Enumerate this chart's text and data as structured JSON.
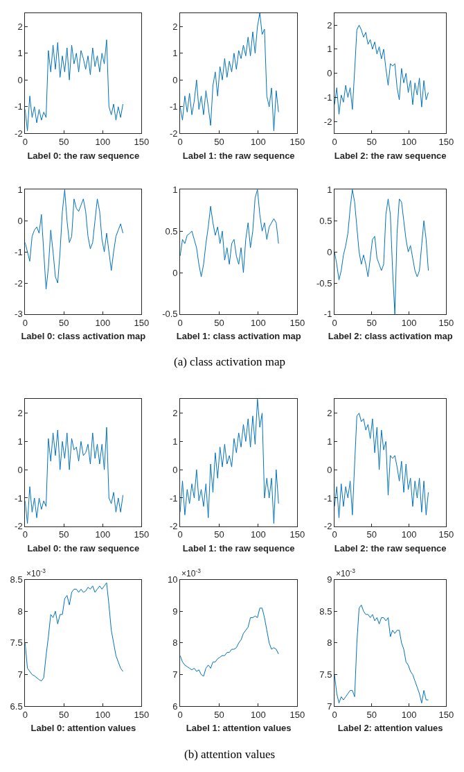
{
  "chart_data": [
    {
      "type": "line",
      "xlabel": "Label 0: the raw sequence",
      "x": [
        0,
        3,
        6,
        9,
        12,
        15,
        18,
        21,
        24,
        27,
        30,
        33,
        36,
        39,
        42,
        45,
        48,
        51,
        54,
        57,
        60,
        63,
        66,
        69,
        72,
        75,
        78,
        81,
        84,
        87,
        90,
        93,
        96,
        99,
        102,
        105,
        108,
        111,
        114,
        117,
        120,
        123,
        126
      ],
      "xlim": [
        0,
        150
      ],
      "xticks": [
        0,
        50,
        100,
        150
      ],
      "ylim": [
        -2,
        2.5
      ],
      "yticks": [
        -2,
        -1,
        0,
        1,
        2
      ],
      "grid": false,
      "series": [
        {
          "color": "#0072bd",
          "values": [
            -1.1,
            -1.9,
            -0.6,
            -1.4,
            -1.0,
            -1.6,
            -1.1,
            -1.5,
            -1.2,
            -1.4,
            1.1,
            0.3,
            1.3,
            0.4,
            1.4,
            0.1,
            0.9,
            0.3,
            1.2,
            0.0,
            1.3,
            0.6,
            1.0,
            0.3,
            1.1,
            0.8,
            0.4,
            0.9,
            0.2,
            1.2,
            0.5,
            0.9,
            0.3,
            1.0,
            0.6,
            1.5,
            -1.0,
            -1.3,
            -0.9,
            -1.5,
            -1.0,
            -1.4,
            -0.9
          ]
        }
      ]
    },
    {
      "type": "line",
      "xlabel": "Label 1: the raw sequence",
      "x": [
        0,
        3,
        6,
        9,
        12,
        15,
        18,
        21,
        24,
        27,
        30,
        33,
        36,
        39,
        42,
        45,
        48,
        51,
        54,
        57,
        60,
        63,
        66,
        69,
        72,
        75,
        78,
        81,
        84,
        87,
        90,
        93,
        96,
        99,
        102,
        105,
        108,
        111,
        114,
        117,
        120,
        123,
        126
      ],
      "xlim": [
        0,
        150
      ],
      "xticks": [
        0,
        50,
        100,
        150
      ],
      "ylim": [
        -2,
        2.5
      ],
      "yticks": [
        -2,
        -1,
        0,
        1,
        2
      ],
      "grid": false,
      "series": [
        {
          "color": "#0072bd",
          "values": [
            -1.0,
            -1.5,
            -0.6,
            -1.2,
            -0.5,
            -1.3,
            -0.8,
            0.0,
            -1.1,
            -0.6,
            -1.3,
            -0.4,
            -1.0,
            -1.7,
            -0.2,
            0.3,
            -0.6,
            0.5,
            0.0,
            0.8,
            0.1,
            0.7,
            0.3,
            1.0,
            0.4,
            1.1,
            0.8,
            1.3,
            0.9,
            1.6,
            0.9,
            1.8,
            1.0,
            2.0,
            2.5,
            1.7,
            1.9,
            -0.6,
            -1.0,
            -0.3,
            -1.9,
            -0.4,
            -1.2
          ]
        }
      ]
    },
    {
      "type": "line",
      "xlabel": "Label 2: the raw sequence",
      "x": [
        0,
        3,
        6,
        9,
        12,
        15,
        18,
        21,
        24,
        27,
        30,
        33,
        36,
        39,
        42,
        45,
        48,
        51,
        54,
        57,
        60,
        63,
        66,
        69,
        72,
        75,
        78,
        81,
        84,
        87,
        90,
        93,
        96,
        99,
        102,
        105,
        108,
        111,
        114,
        117,
        120,
        123,
        126
      ],
      "xlim": [
        0,
        150
      ],
      "xticks": [
        0,
        50,
        100,
        150
      ],
      "ylim": [
        -2.5,
        2.5
      ],
      "yticks": [
        -2,
        -1,
        0,
        1,
        2
      ],
      "grid": false,
      "series": [
        {
          "color": "#0072bd",
          "values": [
            -1.3,
            -0.6,
            -1.7,
            -0.9,
            -1.2,
            -0.5,
            -1.0,
            -0.6,
            -1.5,
            0.1,
            1.8,
            2.0,
            1.8,
            1.5,
            1.7,
            1.2,
            1.4,
            1.0,
            1.3,
            0.8,
            1.1,
            0.6,
            1.0,
            0.2,
            -0.5,
            0.4,
            0.3,
            0.4,
            -0.6,
            -1.1,
            0.2,
            -0.4,
            0.0,
            -0.8,
            -0.3,
            -1.3,
            -0.4,
            -0.9,
            -0.2,
            -1.4,
            -0.3,
            -1.1,
            -0.8
          ]
        }
      ]
    },
    {
      "type": "line",
      "xlabel": "Label 0: class activation map",
      "x": [
        0,
        3,
        6,
        9,
        12,
        15,
        18,
        21,
        24,
        27,
        30,
        33,
        36,
        39,
        42,
        45,
        48,
        51,
        54,
        57,
        60,
        63,
        66,
        69,
        72,
        75,
        78,
        81,
        84,
        87,
        90,
        93,
        96,
        99,
        102,
        105,
        108,
        111,
        114,
        117,
        120,
        123,
        126
      ],
      "xlim": [
        0,
        150
      ],
      "xticks": [
        0,
        50,
        100,
        150
      ],
      "ylim": [
        -3,
        1
      ],
      "yticks": [
        -3,
        -2,
        -1,
        0,
        1
      ],
      "grid": false,
      "series": [
        {
          "color": "#0072bd",
          "values": [
            -0.7,
            -1.0,
            -1.3,
            -0.5,
            -0.3,
            -0.2,
            -0.4,
            0.2,
            -1.0,
            -2.2,
            -1.5,
            -0.3,
            -1.0,
            -1.8,
            -2.0,
            -1.0,
            0.3,
            1.0,
            0.0,
            -0.7,
            -0.5,
            0.7,
            0.4,
            0.3,
            0.5,
            0.7,
            0.3,
            -0.5,
            -0.9,
            -0.7,
            0.0,
            0.7,
            0.3,
            -0.6,
            -1.0,
            -0.4,
            -1.0,
            -1.6,
            -1.0,
            -0.5,
            -0.3,
            -0.1,
            -0.4
          ]
        }
      ]
    },
    {
      "type": "line",
      "xlabel": "Label 1: class activation map",
      "x": [
        0,
        3,
        6,
        9,
        12,
        15,
        18,
        21,
        24,
        27,
        30,
        33,
        36,
        39,
        42,
        45,
        48,
        51,
        54,
        57,
        60,
        63,
        66,
        69,
        72,
        75,
        78,
        81,
        84,
        87,
        90,
        93,
        96,
        99,
        102,
        105,
        108,
        111,
        114,
        117,
        120,
        123,
        126
      ],
      "xlim": [
        0,
        150
      ],
      "xticks": [
        0,
        50,
        100,
        150
      ],
      "ylim": [
        -0.5,
        1
      ],
      "yticks": [
        -0.5,
        0,
        0.5,
        1
      ],
      "grid": false,
      "series": [
        {
          "color": "#0072bd",
          "values": [
            0.2,
            0.4,
            0.35,
            0.45,
            0.47,
            0.5,
            0.4,
            0.3,
            0.1,
            -0.05,
            0.1,
            0.35,
            0.55,
            0.8,
            0.6,
            0.45,
            0.55,
            0.35,
            0.5,
            0.15,
            0.3,
            0.1,
            0.35,
            0.4,
            0.2,
            0.1,
            0.3,
            0.0,
            0.4,
            0.6,
            0.3,
            0.5,
            0.9,
            1.0,
            0.7,
            0.5,
            0.6,
            0.4,
            0.55,
            0.6,
            0.65,
            0.6,
            0.35
          ]
        }
      ]
    },
    {
      "type": "line",
      "xlabel": "Label 2: class activation map",
      "x": [
        0,
        3,
        6,
        9,
        12,
        15,
        18,
        21,
        24,
        27,
        30,
        33,
        36,
        39,
        42,
        45,
        48,
        51,
        54,
        57,
        60,
        63,
        66,
        69,
        72,
        75,
        78,
        81,
        84,
        87,
        90,
        93,
        96,
        99,
        102,
        105,
        108,
        111,
        114,
        117,
        120,
        123,
        126
      ],
      "xlim": [
        0,
        150
      ],
      "xticks": [
        0,
        50,
        100,
        150
      ],
      "ylim": [
        -1,
        1
      ],
      "yticks": [
        -1,
        -0.5,
        0,
        0.5,
        1
      ],
      "grid": false,
      "series": [
        {
          "color": "#0072bd",
          "values": [
            0.0,
            -0.2,
            -0.45,
            -0.3,
            -0.05,
            0.1,
            0.3,
            0.7,
            1.0,
            0.8,
            0.4,
            0.0,
            -0.2,
            -0.05,
            -0.2,
            -0.4,
            -0.1,
            0.2,
            0.25,
            -0.1,
            -0.2,
            -0.3,
            -0.2,
            0.6,
            0.85,
            0.6,
            -0.3,
            -1.0,
            0.3,
            0.85,
            0.8,
            0.5,
            0.2,
            0.0,
            0.1,
            -0.1,
            -0.3,
            -0.4,
            -0.3,
            0.1,
            0.5,
            0.2,
            -0.3
          ]
        }
      ]
    },
    {
      "type": "line",
      "xlabel": "Label 0: the raw sequence",
      "x": [
        0,
        3,
        6,
        9,
        12,
        15,
        18,
        21,
        24,
        27,
        30,
        33,
        36,
        39,
        42,
        45,
        48,
        51,
        54,
        57,
        60,
        63,
        66,
        69,
        72,
        75,
        78,
        81,
        84,
        87,
        90,
        93,
        96,
        99,
        102,
        105,
        108,
        111,
        114,
        117,
        120,
        123,
        126
      ],
      "xlim": [
        0,
        150
      ],
      "xticks": [
        0,
        50,
        100,
        150
      ],
      "ylim": [
        -2,
        2.5
      ],
      "yticks": [
        -2,
        -1,
        0,
        1,
        2
      ],
      "grid": false,
      "series": [
        {
          "color": "#0072bd",
          "values": [
            -1.1,
            -1.9,
            -0.6,
            -1.5,
            -1.0,
            -1.7,
            -1.0,
            -1.4,
            -1.1,
            -1.3,
            1.1,
            0.3,
            1.3,
            0.5,
            1.4,
            0.0,
            1.0,
            0.4,
            1.3,
            0.0,
            1.1,
            0.7,
            0.8,
            0.3,
            1.0,
            0.5,
            0.6,
            0.9,
            0.2,
            1.3,
            0.4,
            0.9,
            0.2,
            0.9,
            0.0,
            1.5,
            -1.0,
            -1.2,
            -0.8,
            -1.5,
            -1.0,
            -1.5,
            -0.9
          ]
        }
      ]
    },
    {
      "type": "line",
      "xlabel": "Label 1: the raw sequence",
      "x": [
        0,
        3,
        6,
        9,
        12,
        15,
        18,
        21,
        24,
        27,
        30,
        33,
        36,
        39,
        42,
        45,
        48,
        51,
        54,
        57,
        60,
        63,
        66,
        69,
        72,
        75,
        78,
        81,
        84,
        87,
        90,
        93,
        96,
        99,
        102,
        105,
        108,
        111,
        114,
        117,
        120,
        123,
        126
      ],
      "xlim": [
        0,
        150
      ],
      "xticks": [
        0,
        50,
        100,
        150
      ],
      "ylim": [
        -2,
        2.5
      ],
      "yticks": [
        -2,
        -1,
        0,
        1,
        2
      ],
      "grid": false,
      "series": [
        {
          "color": "#0072bd",
          "values": [
            -1.5,
            -0.4,
            -1.6,
            -0.7,
            -1.2,
            -0.5,
            -1.0,
            0.0,
            -1.1,
            -0.7,
            -1.3,
            -0.5,
            -1.7,
            0.2,
            -0.8,
            0.6,
            -0.3,
            0.8,
            0.1,
            0.9,
            0.2,
            0.5,
            0.1,
            1.1,
            0.6,
            1.3,
            0.8,
            1.6,
            1.0,
            1.8,
            0.8,
            1.9,
            0.9,
            2.5,
            1.5,
            2.0,
            -1.0,
            -0.3,
            -1.0,
            -0.3,
            -1.9,
            0.0,
            -1.2
          ]
        }
      ]
    },
    {
      "type": "line",
      "xlabel": "Label 2: the raw sequence",
      "x": [
        0,
        3,
        6,
        9,
        12,
        15,
        18,
        21,
        24,
        27,
        30,
        33,
        36,
        39,
        42,
        45,
        48,
        51,
        54,
        57,
        60,
        63,
        66,
        69,
        72,
        75,
        78,
        81,
        84,
        87,
        90,
        93,
        96,
        99,
        102,
        105,
        108,
        111,
        114,
        117,
        120,
        123,
        126
      ],
      "xlim": [
        0,
        150
      ],
      "xticks": [
        0,
        50,
        100,
        150
      ],
      "ylim": [
        -2,
        2.5
      ],
      "yticks": [
        -2,
        -1,
        0,
        1,
        2
      ],
      "grid": false,
      "series": [
        {
          "color": "#0072bd",
          "values": [
            -1.3,
            -0.6,
            -1.7,
            -0.5,
            -1.3,
            -0.6,
            -1.0,
            -0.4,
            -1.6,
            0.2,
            1.9,
            2.0,
            1.7,
            1.8,
            1.4,
            1.6,
            1.1,
            1.8,
            0.6,
            1.5,
            0.0,
            1.4,
            0.7,
            1.0,
            -0.9,
            0.5,
            0.4,
            0.5,
            0.1,
            -0.4,
            0.3,
            -0.8,
            0.2,
            -0.7,
            -0.3,
            -1.3,
            -0.4,
            -1.0,
            -0.3,
            -1.5,
            -0.4,
            -1.6,
            -0.8
          ]
        }
      ]
    },
    {
      "type": "line",
      "xlabel": "Label 0: attention values",
      "annotations": [
        "×10$^{-3}$"
      ],
      "x": [
        0,
        3,
        6,
        9,
        12,
        15,
        18,
        21,
        24,
        27,
        30,
        33,
        36,
        39,
        42,
        45,
        48,
        51,
        54,
        57,
        60,
        63,
        66,
        69,
        72,
        75,
        78,
        81,
        84,
        87,
        90,
        93,
        96,
        99,
        102,
        105,
        108,
        111,
        114,
        117,
        120,
        123,
        126
      ],
      "xlim": [
        0,
        150
      ],
      "xticks": [
        0,
        50,
        100,
        150
      ],
      "ylim": [
        6.5,
        8.5
      ],
      "yticks": [
        6.5,
        7,
        7.5,
        8,
        8.5
      ],
      "grid": false,
      "series": [
        {
          "color": "#0072bd",
          "values": [
            7.5,
            7.1,
            7.05,
            7.0,
            6.98,
            6.95,
            6.92,
            6.9,
            6.95,
            7.3,
            7.6,
            7.95,
            7.9,
            8.0,
            7.8,
            7.95,
            7.95,
            8.2,
            8.25,
            8.1,
            8.3,
            8.35,
            8.35,
            8.3,
            8.35,
            8.3,
            8.32,
            8.38,
            8.35,
            8.4,
            8.3,
            8.35,
            8.4,
            8.35,
            8.4,
            8.45,
            8.1,
            7.7,
            7.5,
            7.3,
            7.2,
            7.1,
            7.05
          ]
        }
      ]
    },
    {
      "type": "line",
      "xlabel": "Label 1: attention values",
      "annotations": [
        "×10$^{-3}$"
      ],
      "x": [
        0,
        3,
        6,
        9,
        12,
        15,
        18,
        21,
        24,
        27,
        30,
        33,
        36,
        39,
        42,
        45,
        48,
        51,
        54,
        57,
        60,
        63,
        66,
        69,
        72,
        75,
        78,
        81,
        84,
        87,
        90,
        93,
        96,
        99,
        102,
        105,
        108,
        111,
        114,
        117,
        120,
        123,
        126
      ],
      "xlim": [
        0,
        150
      ],
      "xticks": [
        0,
        50,
        100,
        150
      ],
      "ylim": [
        6,
        10
      ],
      "yticks": [
        6,
        7,
        8,
        9,
        10
      ],
      "grid": false,
      "series": [
        {
          "color": "#0072bd",
          "values": [
            7.6,
            7.4,
            7.3,
            7.25,
            7.2,
            7.15,
            7.2,
            7.1,
            7.15,
            7.0,
            6.95,
            7.2,
            7.3,
            7.2,
            7.4,
            7.4,
            7.5,
            7.55,
            7.6,
            7.6,
            7.7,
            7.7,
            7.8,
            7.8,
            7.85,
            8.0,
            8.1,
            8.3,
            8.4,
            8.5,
            8.8,
            8.8,
            8.85,
            8.8,
            9.1,
            9.1,
            8.8,
            8.4,
            8.0,
            7.8,
            7.85,
            7.8,
            7.65
          ]
        }
      ]
    },
    {
      "type": "line",
      "xlabel": "Label 2: attention values",
      "annotations": [
        "×10$^{-3}$"
      ],
      "x": [
        0,
        3,
        6,
        9,
        12,
        15,
        18,
        21,
        24,
        27,
        30,
        33,
        36,
        39,
        42,
        45,
        48,
        51,
        54,
        57,
        60,
        63,
        66,
        69,
        72,
        75,
        78,
        81,
        84,
        87,
        90,
        93,
        96,
        99,
        102,
        105,
        108,
        111,
        114,
        117,
        120,
        123,
        126
      ],
      "xlim": [
        0,
        150
      ],
      "xticks": [
        0,
        50,
        100,
        150
      ],
      "ylim": [
        7,
        9
      ],
      "yticks": [
        7,
        7.5,
        8,
        8.5,
        9
      ],
      "grid": false,
      "series": [
        {
          "color": "#0072bd",
          "values": [
            7.5,
            7.2,
            7.05,
            7.15,
            7.1,
            7.15,
            7.2,
            7.25,
            7.25,
            7.15,
            8.0,
            8.55,
            8.6,
            8.5,
            8.45,
            8.45,
            8.4,
            8.45,
            8.35,
            8.4,
            8.3,
            8.4,
            8.4,
            8.35,
            8.4,
            8.1,
            8.2,
            8.15,
            8.2,
            8.2,
            8.0,
            7.9,
            7.7,
            7.65,
            7.55,
            7.5,
            7.4,
            7.3,
            7.2,
            7.05,
            7.25,
            7.1,
            7.1
          ]
        }
      ]
    },
    {
      "type": "other",
      "title": "(a) class activation map"
    },
    {
      "type": "other",
      "title": "(b) attention values"
    }
  ]
}
